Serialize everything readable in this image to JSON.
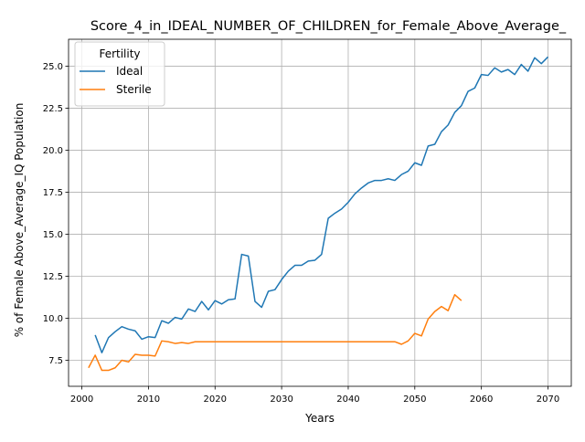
{
  "chart_data": {
    "type": "line",
    "title": "Score_4_in_IDEAL_NUMBER_OF_CHILDREN_for_Female_Above_Average_",
    "xlabel": "Years",
    "ylabel": "% of Female Above_Average_IQ Population",
    "xlim": [
      1998,
      2073.5
    ],
    "ylim": [
      5.95,
      26.6
    ],
    "xticks": [
      2000,
      2010,
      2020,
      2030,
      2040,
      2050,
      2060,
      2070
    ],
    "yticks": [
      7.5,
      10.0,
      12.5,
      15.0,
      17.5,
      20.0,
      22.5,
      25.0
    ],
    "ytick_labels": [
      "7.5",
      "10.0",
      "12.5",
      "15.0",
      "17.5",
      "20.0",
      "22.5",
      "25.0"
    ],
    "grid": true,
    "legend_title": "Fertility",
    "legend_position": "top-left",
    "series": [
      {
        "name": "Ideal",
        "color": "#1f77b4",
        "x": [
          2002,
          2003,
          2004,
          2005,
          2006,
          2007,
          2008,
          2009,
          2010,
          2011,
          2012,
          2013,
          2014,
          2015,
          2016,
          2017,
          2018,
          2019,
          2020,
          2021,
          2022,
          2023,
          2024,
          2025,
          2026,
          2027,
          2028,
          2029,
          2030,
          2031,
          2032,
          2033,
          2034,
          2035,
          2036,
          2037,
          2038,
          2039,
          2040,
          2041,
          2042,
          2043,
          2044,
          2045,
          2046,
          2047,
          2048,
          2049,
          2050,
          2051,
          2052,
          2053,
          2054,
          2055,
          2056,
          2057,
          2058,
          2059,
          2060,
          2061,
          2062,
          2063,
          2064,
          2065,
          2066,
          2067,
          2068,
          2069,
          2070
        ],
        "y": [
          9.0,
          7.95,
          8.85,
          9.2,
          9.5,
          9.35,
          9.25,
          8.75,
          8.9,
          8.85,
          9.85,
          9.7,
          10.05,
          9.95,
          10.55,
          10.4,
          11.0,
          10.5,
          11.05,
          10.85,
          11.1,
          11.15,
          13.8,
          13.7,
          11.0,
          10.65,
          11.6,
          11.7,
          12.3,
          12.8,
          13.15,
          13.15,
          13.4,
          13.45,
          13.8,
          15.95,
          16.25,
          16.5,
          16.9,
          17.4,
          17.75,
          18.05,
          18.2,
          18.2,
          18.3,
          18.2,
          18.55,
          18.75,
          19.25,
          19.1,
          20.25,
          20.35,
          21.1,
          21.5,
          22.25,
          22.65,
          23.5,
          23.7,
          24.5,
          24.45,
          24.9,
          24.65,
          24.8,
          24.5,
          25.1,
          24.7,
          25.5,
          25.15,
          25.55
        ]
      },
      {
        "name": "Sterile",
        "color": "#ff7f0e",
        "x": [
          2001,
          2002,
          2003,
          2004,
          2005,
          2006,
          2007,
          2008,
          2009,
          2010,
          2011,
          2012,
          2013,
          2014,
          2015,
          2016,
          2017,
          2018,
          2019,
          2020,
          2021,
          2022,
          2023,
          2024,
          2025,
          2026,
          2027,
          2028,
          2029,
          2030,
          2031,
          2032,
          2033,
          2034,
          2035,
          2036,
          2037,
          2038,
          2039,
          2040,
          2041,
          2042,
          2043,
          2044,
          2045,
          2046,
          2047,
          2048,
          2049,
          2050,
          2051,
          2052,
          2053,
          2054,
          2055,
          2056,
          2057
        ],
        "y": [
          7.05,
          7.8,
          6.9,
          6.9,
          7.05,
          7.5,
          7.4,
          7.85,
          7.8,
          7.8,
          7.75,
          8.65,
          8.6,
          8.5,
          8.55,
          8.5,
          8.6,
          8.6,
          8.6,
          8.6,
          8.6,
          8.6,
          8.6,
          8.6,
          8.6,
          8.6,
          8.6,
          8.6,
          8.6,
          8.6,
          8.6,
          8.6,
          8.6,
          8.6,
          8.6,
          8.6,
          8.6,
          8.6,
          8.6,
          8.6,
          8.6,
          8.6,
          8.6,
          8.6,
          8.6,
          8.6,
          8.6,
          8.45,
          8.65,
          9.1,
          8.95,
          9.95,
          10.4,
          10.7,
          10.45,
          11.4,
          11.05
        ]
      }
    ]
  }
}
